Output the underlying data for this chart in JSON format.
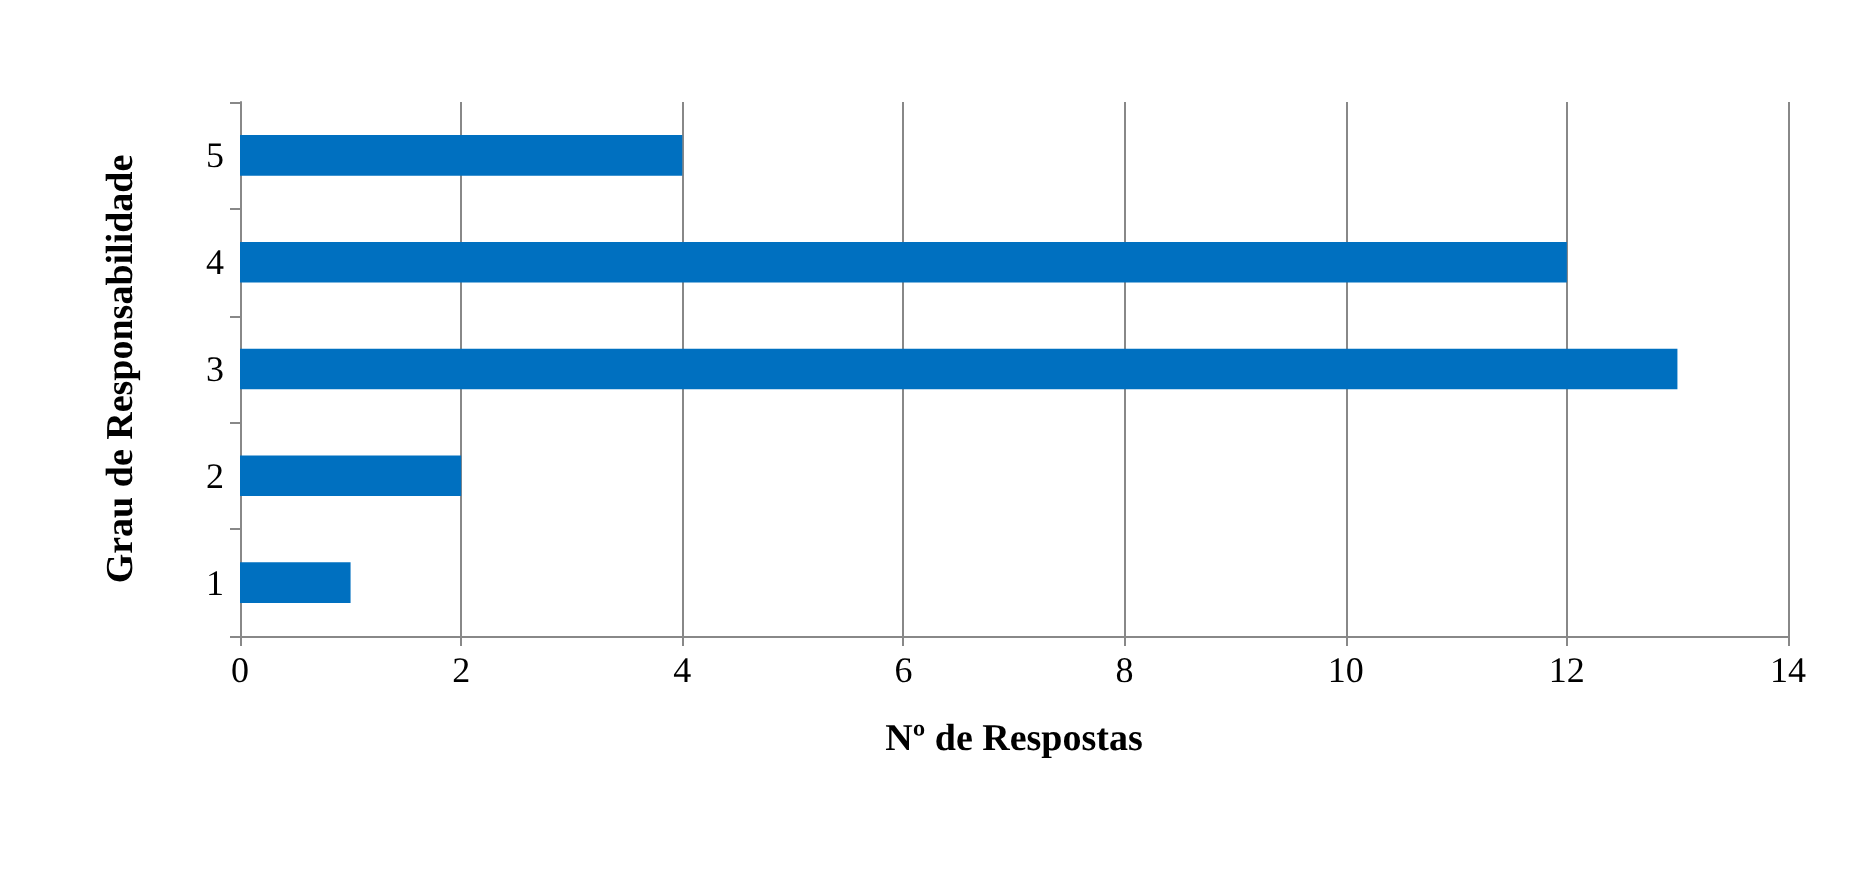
{
  "chart_data": {
    "type": "bar",
    "orientation": "horizontal",
    "categories": [
      "5",
      "4",
      "3",
      "2",
      "1"
    ],
    "values": [
      4,
      12,
      13,
      2,
      1
    ],
    "color": "#0070c0",
    "xlim": [
      0,
      14
    ],
    "xticks": [
      0,
      2,
      4,
      6,
      8,
      10,
      12,
      14
    ],
    "xlabel": "Nº de Respostas",
    "ylabel": "Grau de Responsabilidade",
    "grid": "x"
  }
}
